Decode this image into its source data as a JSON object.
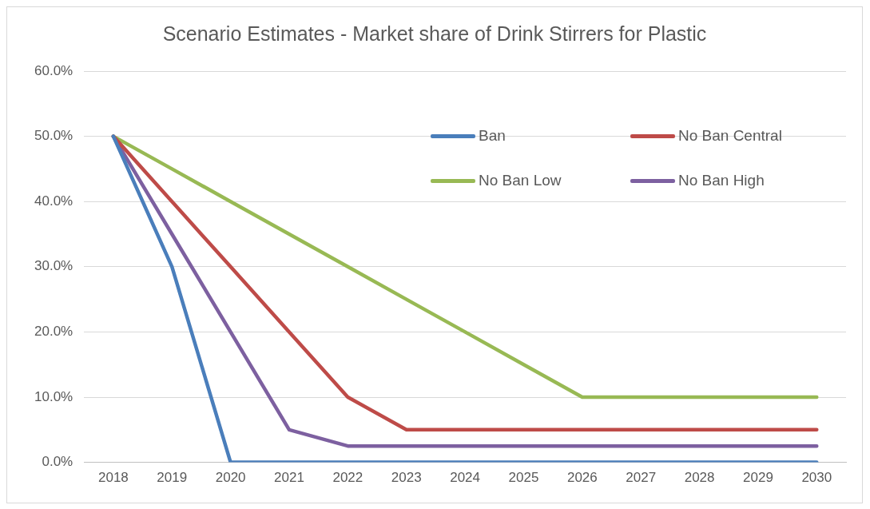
{
  "chart_data": {
    "type": "line",
    "title": "Scenario Estimates - Market share of Drink Stirrers for Plastic",
    "categories": [
      "2018",
      "2019",
      "2020",
      "2021",
      "2022",
      "2023",
      "2024",
      "2025",
      "2026",
      "2027",
      "2028",
      "2029",
      "2030"
    ],
    "series": [
      {
        "name": "Ban",
        "color": "#4a7ebb",
        "values": [
          50,
          30,
          0,
          0,
          0,
          0,
          0,
          0,
          0,
          0,
          0,
          0,
          0
        ]
      },
      {
        "name": "No Ban Central",
        "color": "#be4b48",
        "values": [
          50,
          40,
          30,
          20,
          10,
          5,
          5,
          5,
          5,
          5,
          5,
          5,
          5
        ]
      },
      {
        "name": "No Ban Low",
        "color": "#98b954",
        "values": [
          50,
          45,
          40,
          35,
          30,
          25,
          20,
          15,
          10,
          10,
          10,
          10,
          10
        ]
      },
      {
        "name": "No Ban High",
        "color": "#7d60a0",
        "values": [
          50,
          35,
          20,
          5,
          2.5,
          2.5,
          2.5,
          2.5,
          2.5,
          2.5,
          2.5,
          2.5,
          2.5
        ]
      }
    ],
    "ylim": [
      0,
      60
    ],
    "yticks": [
      {
        "value": 0,
        "label": "0.0%"
      },
      {
        "value": 10,
        "label": "10.0%"
      },
      {
        "value": 20,
        "label": "20.0%"
      },
      {
        "value": 30,
        "label": "30.0%"
      },
      {
        "value": 40,
        "label": "40.0%"
      },
      {
        "value": 50,
        "label": "50.0%"
      },
      {
        "value": 60,
        "label": "60.0%"
      }
    ],
    "grid": "y",
    "legend": "top right",
    "marker": "none",
    "line_style": "solid"
  }
}
